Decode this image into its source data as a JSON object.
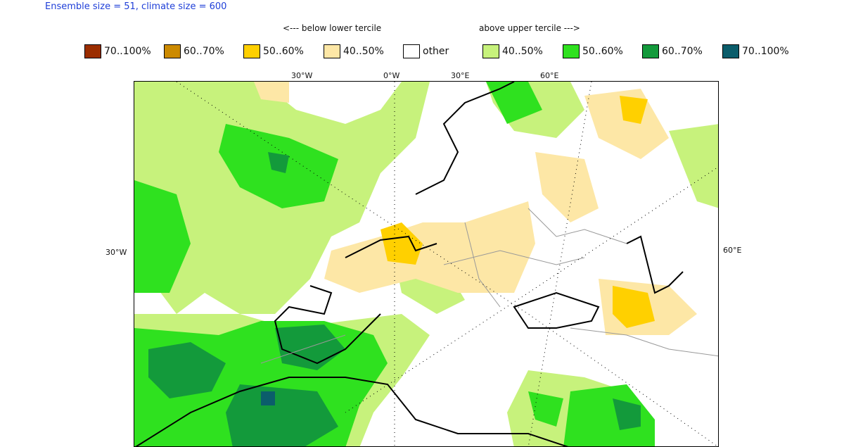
{
  "header": {
    "ensemble_text": "Ensemble size = 51, climate size = 600"
  },
  "captions": {
    "below": "<--- below lower tercile",
    "above": "above upper tercile --->"
  },
  "legend": [
    {
      "label": "70..100%",
      "color": "#9b2d00",
      "name": "legend-below-70-100"
    },
    {
      "label": "60..70%",
      "color": "#cc8a00",
      "name": "legend-below-60-70"
    },
    {
      "label": "50..60%",
      "color": "#ffd000",
      "name": "legend-below-50-60"
    },
    {
      "label": "40..50%",
      "color": "#fde7a6",
      "name": "legend-below-40-50"
    },
    {
      "label": "other",
      "color": "#ffffff",
      "name": "legend-other"
    },
    {
      "label": "40..50%",
      "color": "#c7f27c",
      "name": "legend-above-40-50"
    },
    {
      "label": "50..60%",
      "color": "#2fe11f",
      "name": "legend-above-50-60"
    },
    {
      "label": "60..70%",
      "color": "#139a3b",
      "name": "legend-above-60-70"
    },
    {
      "label": "70..100%",
      "color": "#0b5d6b",
      "name": "legend-above-70-100"
    }
  ],
  "map": {
    "top_ticks": [
      "30°W",
      "0°W",
      "30°E",
      "60°E"
    ],
    "left_tick": "30°W",
    "right_tick": "60°E"
  }
}
